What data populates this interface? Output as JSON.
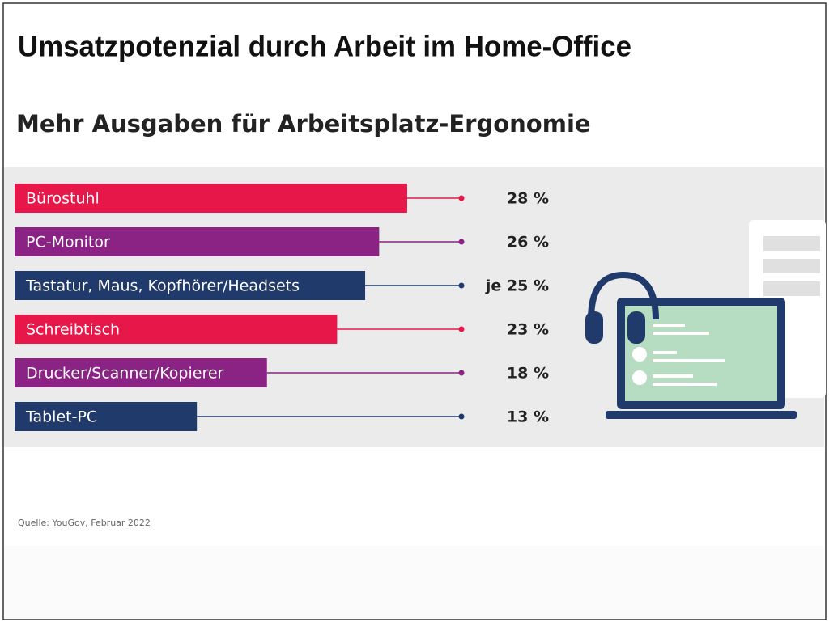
{
  "header": {
    "title": "Umsatzpotenzial durch Arbeit im Home-Office"
  },
  "chart_data": {
    "type": "hbar",
    "title": "Mehr Ausgaben für Arbeitsplatz-Ergonomie",
    "categories": [
      "Bürostuhl",
      "PC-Monitor",
      "Tastatur, Maus, Kopfhörer/Headsets",
      "Schreibtisch",
      "Drucker/Scanner/Kopierer",
      "Tablet-PC"
    ],
    "values": [
      28,
      26,
      25,
      23,
      18,
      13
    ],
    "value_labels": [
      "28 %",
      "26 %",
      "je 25 %",
      "23 %",
      "18 %",
      "13 %"
    ],
    "colors": [
      "#e8174a",
      "#8b2384",
      "#1f3a6b",
      "#e8174a",
      "#8b2384",
      "#1f3a6b"
    ],
    "source": "Quelle: YouGov, Februar 2022"
  }
}
